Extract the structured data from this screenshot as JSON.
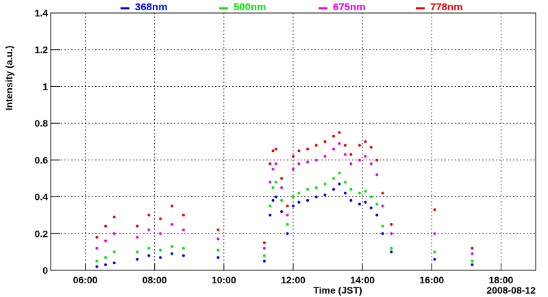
{
  "chart_data": {
    "type": "scatter",
    "xlabel": "Time (JST)",
    "ylabel": "Intensity (a.u.)",
    "date_label": "2008-08-12",
    "xlim": [
      "05:00",
      "19:00"
    ],
    "ylim": [
      0,
      1.4
    ],
    "x_ticks": [
      "06:00",
      "08:00",
      "10:00",
      "12:00",
      "14:00",
      "16:00",
      "18:00"
    ],
    "y_ticks": [
      "0",
      "0.2",
      "0.4",
      "0.6",
      "0.8",
      "1",
      "1.2",
      "1.4"
    ],
    "grid": true,
    "legend_position": "top",
    "series": [
      {
        "name": "368nm",
        "color": "#0000ee",
        "points": [
          [
            "06:20",
            0.02
          ],
          [
            "06:35",
            0.03
          ],
          [
            "06:50",
            0.04
          ],
          [
            "07:30",
            0.06
          ],
          [
            "07:50",
            0.08
          ],
          [
            "08:10",
            0.07
          ],
          [
            "08:30",
            0.09
          ],
          [
            "08:50",
            0.08
          ],
          [
            "09:50",
            0.07
          ],
          [
            "11:10",
            0.05
          ],
          [
            "11:20",
            0.3
          ],
          [
            "11:25",
            0.38
          ],
          [
            "11:30",
            0.4
          ],
          [
            "11:40",
            0.32
          ],
          [
            "11:50",
            0.2
          ],
          [
            "12:00",
            0.35
          ],
          [
            "12:10",
            0.37
          ],
          [
            "12:25",
            0.38
          ],
          [
            "12:40",
            0.4
          ],
          [
            "12:55",
            0.41
          ],
          [
            "13:10",
            0.44
          ],
          [
            "13:20",
            0.47
          ],
          [
            "13:30",
            0.42
          ],
          [
            "13:40",
            0.38
          ],
          [
            "13:55",
            0.36
          ],
          [
            "14:05",
            0.37
          ],
          [
            "14:15",
            0.34
          ],
          [
            "14:25",
            0.3
          ],
          [
            "14:35",
            0.2
          ],
          [
            "14:50",
            0.1
          ],
          [
            "16:05",
            0.06
          ],
          [
            "17:10",
            0.03
          ]
        ]
      },
      {
        "name": "500nm",
        "color": "#00ee00",
        "points": [
          [
            "06:20",
            0.05
          ],
          [
            "06:35",
            0.07
          ],
          [
            "06:50",
            0.1
          ],
          [
            "07:30",
            0.1
          ],
          [
            "07:50",
            0.12
          ],
          [
            "08:10",
            0.11
          ],
          [
            "08:30",
            0.13
          ],
          [
            "08:50",
            0.12
          ],
          [
            "09:50",
            0.11
          ],
          [
            "11:10",
            0.08
          ],
          [
            "11:20",
            0.35
          ],
          [
            "11:25",
            0.45
          ],
          [
            "11:30",
            0.48
          ],
          [
            "11:40",
            0.38
          ],
          [
            "11:50",
            0.25
          ],
          [
            "12:00",
            0.4
          ],
          [
            "12:10",
            0.42
          ],
          [
            "12:25",
            0.44
          ],
          [
            "12:40",
            0.45
          ],
          [
            "12:55",
            0.47
          ],
          [
            "13:10",
            0.5
          ],
          [
            "13:20",
            0.53
          ],
          [
            "13:30",
            0.48
          ],
          [
            "13:40",
            0.44
          ],
          [
            "13:55",
            0.42
          ],
          [
            "14:05",
            0.43
          ],
          [
            "14:15",
            0.4
          ],
          [
            "14:25",
            0.36
          ],
          [
            "14:35",
            0.24
          ],
          [
            "14:50",
            0.12
          ],
          [
            "16:05",
            0.1
          ],
          [
            "17:10",
            0.05
          ]
        ]
      },
      {
        "name": "675nm",
        "color": "#ee00ee",
        "points": [
          [
            "06:20",
            0.12
          ],
          [
            "06:35",
            0.16
          ],
          [
            "06:50",
            0.2
          ],
          [
            "07:30",
            0.18
          ],
          [
            "07:50",
            0.22
          ],
          [
            "08:10",
            0.2
          ],
          [
            "08:30",
            0.25
          ],
          [
            "08:50",
            0.22
          ],
          [
            "09:50",
            0.17
          ],
          [
            "11:10",
            0.12
          ],
          [
            "11:20",
            0.48
          ],
          [
            "11:25",
            0.55
          ],
          [
            "11:30",
            0.58
          ],
          [
            "11:40",
            0.45
          ],
          [
            "11:50",
            0.3
          ],
          [
            "12:00",
            0.55
          ],
          [
            "12:10",
            0.58
          ],
          [
            "12:25",
            0.59
          ],
          [
            "12:40",
            0.6
          ],
          [
            "12:55",
            0.62
          ],
          [
            "13:10",
            0.66
          ],
          [
            "13:20",
            0.69
          ],
          [
            "13:30",
            0.63
          ],
          [
            "13:40",
            0.58
          ],
          [
            "13:55",
            0.6
          ],
          [
            "14:05",
            0.62
          ],
          [
            "14:15",
            0.58
          ],
          [
            "14:25",
            0.52
          ],
          [
            "14:35",
            0.35
          ],
          [
            "14:50",
            0.2
          ],
          [
            "16:05",
            0.2
          ],
          [
            "17:10",
            0.09
          ]
        ]
      },
      {
        "name": "778nm",
        "color": "#ee0000",
        "points": [
          [
            "06:20",
            0.18
          ],
          [
            "06:35",
            0.24
          ],
          [
            "06:50",
            0.29
          ],
          [
            "07:30",
            0.24
          ],
          [
            "07:50",
            0.3
          ],
          [
            "08:10",
            0.28
          ],
          [
            "08:30",
            0.35
          ],
          [
            "08:50",
            0.3
          ],
          [
            "09:50",
            0.22
          ],
          [
            "11:10",
            0.15
          ],
          [
            "11:20",
            0.58
          ],
          [
            "11:25",
            0.65
          ],
          [
            "11:30",
            0.66
          ],
          [
            "11:40",
            0.5
          ],
          [
            "11:50",
            0.35
          ],
          [
            "12:00",
            0.62
          ],
          [
            "12:10",
            0.65
          ],
          [
            "12:25",
            0.66
          ],
          [
            "12:40",
            0.68
          ],
          [
            "12:55",
            0.7
          ],
          [
            "13:10",
            0.73
          ],
          [
            "13:20",
            0.75
          ],
          [
            "13:30",
            0.68
          ],
          [
            "13:40",
            0.63
          ],
          [
            "13:55",
            0.68
          ],
          [
            "14:05",
            0.7
          ],
          [
            "14:15",
            0.67
          ],
          [
            "14:25",
            0.6
          ],
          [
            "14:35",
            0.42
          ],
          [
            "14:50",
            0.25
          ],
          [
            "16:05",
            0.33
          ],
          [
            "17:10",
            0.12
          ]
        ]
      }
    ]
  }
}
